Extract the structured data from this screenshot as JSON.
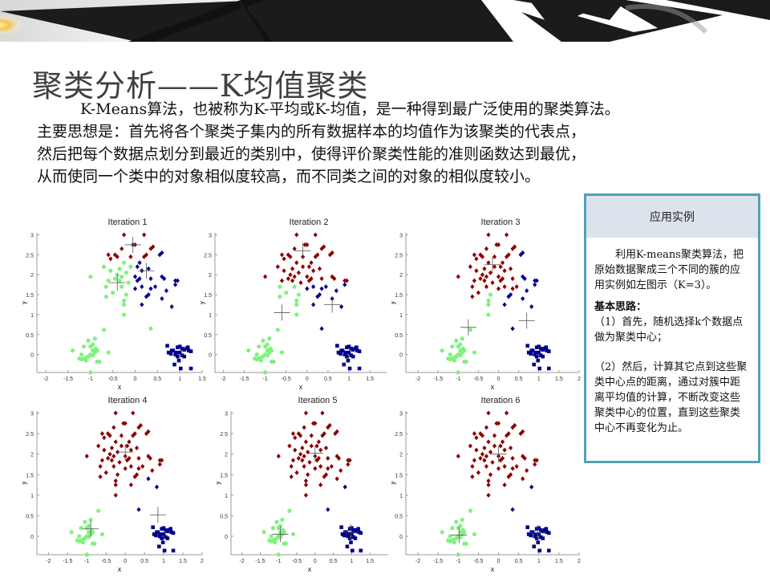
{
  "slide": {
    "title": "聚类分析——K均值聚类",
    "intro": [
      "K-Means算法，也被称为K-平均或K-均值，是一种得到最广泛使用的聚类算法。",
      "主要思想是：首先将各个聚类子集内的所有数据样本的均值作为该聚类的代表点，",
      "然后把每个数据点划分到最近的类别中，使得评价聚类性能的准则函数达到最优，",
      "从而使同一个类中的对象相似度较高，而不同类之间的对象的相似度较小。"
    ]
  },
  "panel": {
    "header": "应用实例",
    "paragraph": "利用K-means聚类算法，把原始数据聚成三个不同的簇的应用实例如左图示（K=3）。",
    "subheading": "基本思路：",
    "step1": "（1）首先，随机选择k个数据点做为聚类中心；",
    "step2": "（2）然后，计算其它点到这些聚类中心点的距离，通过对簇中距离平均值的计算，不断改变这些聚类中心的位置，直到这些聚类中心不再变化为止。",
    "border_color": "#4fa3b5",
    "header_bg": "#dde3ec"
  },
  "colors": {
    "cluster_red": "#8b0000",
    "cluster_blue": "#00008b",
    "cluster_green": "#7ef27e",
    "centroid": "#555555"
  },
  "chart_data": [
    {
      "type": "scatter",
      "title": "Iteration 1",
      "xlabel": "x",
      "ylabel": "y",
      "xlim": [
        -2.2,
        1.5
      ],
      "ylim": [
        -0.45,
        3.05
      ],
      "xticks": [
        -2,
        -1.5,
        -1,
        -0.5,
        0,
        0.5,
        1,
        1.5
      ],
      "yticks": [
        0,
        0.5,
        1,
        1.5,
        2,
        2.5,
        3
      ],
      "centroids": [
        [
          -0.05,
          2.75
        ],
        [
          0.25,
          2.1
        ],
        [
          -0.4,
          1.8
        ]
      ]
    },
    {
      "type": "scatter",
      "title": "Iteration 2",
      "xlabel": "x",
      "ylabel": "y",
      "xlim": [
        -2.2,
        1.9
      ],
      "ylim": [
        -0.45,
        3.05
      ],
      "xticks": [
        -2,
        -1.5,
        -1,
        -0.5,
        0,
        0.5,
        1,
        1.5
      ],
      "yticks": [
        0,
        0.5,
        1,
        1.5,
        2,
        2.5,
        3
      ],
      "centroids": [
        [
          -0.1,
          2.6
        ],
        [
          0.6,
          1.25
        ],
        [
          -0.6,
          1.05
        ]
      ]
    },
    {
      "type": "scatter",
      "title": "Iteration 3",
      "xlabel": "x",
      "ylabel": "y",
      "xlim": [
        -2.3,
        2.0
      ],
      "ylim": [
        -0.45,
        3.05
      ],
      "xticks": [
        -2,
        -1.5,
        -1,
        -0.5,
        0,
        0.5,
        1,
        1.5,
        2
      ],
      "yticks": [
        0,
        0.5,
        1,
        1.5,
        2,
        2.5,
        3
      ],
      "centroids": [
        [
          -0.15,
          2.25
        ],
        [
          0.7,
          0.85
        ],
        [
          -0.75,
          0.68
        ]
      ]
    },
    {
      "type": "scatter",
      "title": "Iteration 4",
      "xlabel": "x",
      "ylabel": "y",
      "xlim": [
        -2.3,
        2.0
      ],
      "ylim": [
        -0.45,
        3.05
      ],
      "xticks": [
        -2,
        -1.5,
        -1,
        -0.5,
        0,
        0.5,
        1,
        1.5,
        2
      ],
      "yticks": [
        0,
        0.5,
        1,
        1.5,
        2,
        2.5,
        3
      ],
      "centroids": [
        [
          0.0,
          2.05
        ],
        [
          0.85,
          0.52
        ],
        [
          -0.9,
          0.18
        ]
      ]
    },
    {
      "type": "scatter",
      "title": "Iteration 5",
      "xlabel": "x",
      "ylabel": "y",
      "xlim": [
        -2.3,
        2.0
      ],
      "ylim": [
        -0.45,
        3.05
      ],
      "xticks": [
        -2,
        -1.5,
        -1,
        -0.5,
        0,
        0.5,
        1,
        1.5
      ],
      "yticks": [
        0,
        0.5,
        1,
        1.5,
        2,
        2.5,
        3
      ],
      "centroids": [
        [
          0.0,
          2.02
        ],
        [
          0.97,
          0.1
        ],
        [
          -0.95,
          0.05
        ]
      ]
    },
    {
      "type": "scatter",
      "title": "Iteration 6",
      "xlabel": "x",
      "ylabel": "y",
      "xlim": [
        -2.3,
        2.0
      ],
      "ylim": [
        -0.45,
        3.05
      ],
      "xticks": [
        -2,
        -1.5,
        -1,
        -0.5,
        0,
        0.5,
        1,
        1.5,
        2
      ],
      "yticks": [
        0,
        0.5,
        1,
        1.5,
        2,
        2.5,
        3
      ],
      "centroids": [
        [
          0.0,
          2.0
        ],
        [
          0.97,
          0.08
        ],
        [
          -0.98,
          0.03
        ]
      ]
    }
  ],
  "dataset": {
    "top_blob": [
      [
        -0.25,
        3.0
      ],
      [
        0.2,
        3.0
      ],
      [
        -0.05,
        2.75
      ],
      [
        0.0,
        2.75
      ],
      [
        0.4,
        2.7
      ],
      [
        0.35,
        2.65
      ],
      [
        -0.3,
        2.65
      ],
      [
        -0.6,
        2.5
      ],
      [
        -0.45,
        2.5
      ],
      [
        -0.4,
        2.45
      ],
      [
        -0.55,
        2.4
      ],
      [
        0.6,
        2.55
      ],
      [
        0.55,
        2.5
      ],
      [
        -0.1,
        2.45
      ],
      [
        0.2,
        2.45
      ],
      [
        0.25,
        2.5
      ],
      [
        -0.25,
        2.3
      ],
      [
        0.1,
        2.3
      ],
      [
        -0.7,
        2.2
      ],
      [
        -0.35,
        2.15
      ],
      [
        -0.1,
        2.2
      ],
      [
        0.05,
        2.2
      ],
      [
        0.3,
        2.15
      ],
      [
        -0.55,
        2.1
      ],
      [
        -0.2,
        2.05
      ],
      [
        0.15,
        2.1
      ],
      [
        -0.4,
        2.0
      ],
      [
        -0.3,
        1.95
      ],
      [
        0.0,
        1.95
      ],
      [
        0.1,
        1.9
      ],
      [
        0.35,
        1.9
      ],
      [
        -0.45,
        1.9
      ],
      [
        -0.35,
        1.85
      ],
      [
        -0.6,
        1.85
      ],
      [
        -0.15,
        1.8
      ],
      [
        0.05,
        1.85
      ],
      [
        0.6,
        1.95
      ],
      [
        0.65,
        1.9
      ],
      [
        -1.0,
        1.95
      ],
      [
        -0.65,
        1.7
      ],
      [
        -0.3,
        1.7
      ],
      [
        0.15,
        1.7
      ],
      [
        0.45,
        1.7
      ],
      [
        0.35,
        1.65
      ],
      [
        -0.5,
        1.55
      ],
      [
        -0.2,
        1.5
      ],
      [
        0.0,
        1.65
      ],
      [
        0.25,
        1.45
      ],
      [
        0.3,
        1.5
      ],
      [
        0.7,
        1.6
      ],
      [
        0.9,
        1.85
      ],
      [
        0.95,
        1.85
      ],
      [
        0.9,
        1.75
      ],
      [
        -0.65,
        1.45
      ],
      [
        -0.25,
        1.25
      ],
      [
        0.15,
        1.25
      ],
      [
        -0.25,
        1.35
      ],
      [
        0.6,
        1.4
      ],
      [
        0.82,
        1.2
      ],
      [
        -0.25,
        1.0
      ],
      [
        0.35,
        0.65
      ]
    ],
    "bottom_right": [
      [
        0.72,
        0.22
      ],
      [
        0.75,
        0.05
      ],
      [
        0.85,
        0.1
      ],
      [
        0.9,
        0.0
      ],
      [
        0.95,
        0.18
      ],
      [
        1.0,
        0.2
      ],
      [
        1.05,
        0.15
      ],
      [
        1.0,
        0.05
      ],
      [
        1.1,
        0.12
      ],
      [
        1.2,
        0.1
      ],
      [
        1.25,
        0.08
      ],
      [
        1.15,
        0.15
      ],
      [
        0.8,
        0.02
      ],
      [
        0.95,
        -0.05
      ],
      [
        1.05,
        -0.02
      ],
      [
        0.92,
        0.05
      ],
      [
        1.1,
        -0.05
      ],
      [
        0.98,
        -0.15
      ],
      [
        0.88,
        -0.25
      ],
      [
        1.02,
        -0.35
      ],
      [
        1.25,
        -0.35
      ],
      [
        1.18,
        0.18
      ],
      [
        0.82,
        0.1
      ]
    ],
    "bottom_left": [
      [
        -1.4,
        0.1
      ],
      [
        -1.2,
        0.0
      ],
      [
        -1.15,
        -0.1
      ],
      [
        -1.1,
        -0.08
      ],
      [
        -1.05,
        -0.05
      ],
      [
        -1.0,
        0.0
      ],
      [
        -0.95,
        -0.02
      ],
      [
        -0.9,
        0.05
      ],
      [
        -0.85,
        0.1
      ],
      [
        -0.8,
        -0.18
      ],
      [
        -0.85,
        -0.18
      ],
      [
        -0.6,
        0.05
      ],
      [
        -1.0,
        0.2
      ],
      [
        -0.95,
        0.25
      ],
      [
        -1.05,
        0.35
      ],
      [
        -0.9,
        0.4
      ],
      [
        -0.7,
        0.62
      ],
      [
        -1.25,
        -0.1
      ],
      [
        -1.15,
        0.2
      ],
      [
        -0.95,
        0.1
      ],
      [
        -1.0,
        -0.45
      ],
      [
        -1.1,
        -0.15
      ],
      [
        -0.88,
        0.15
      ],
      [
        -1.2,
        -0.12
      ]
    ]
  }
}
